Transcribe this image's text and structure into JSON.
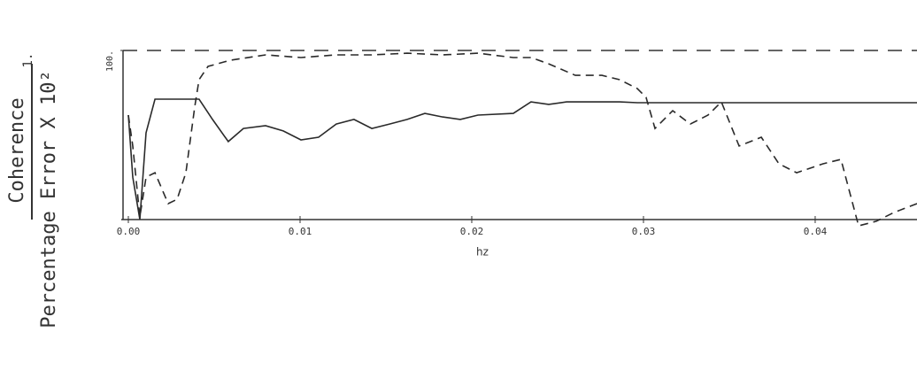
{
  "chart_data": {
    "type": "line",
    "ylabel_top": "Coherence",
    "ylabel_top_value": "1.",
    "ylabel": "Percentage Error X 10²",
    "xlabel": "hz",
    "xlim": [
      0,
      0.04593
    ],
    "ylim": [
      0,
      100
    ],
    "xticks": [
      {
        "value": 0,
        "label": "0.00"
      },
      0.01,
      0.02,
      0.03,
      0.04
    ],
    "yticks": [
      {
        "value": 100,
        "label": "100."
      }
    ],
    "reference_line": 100,
    "series": [
      {
        "color": "#2a2a2a",
        "style": "solid",
        "x": [
          0,
          0.00026,
          0.00067,
          0.00103,
          0.00155,
          0.00412,
          0.0049,
          0.00582,
          0.0067,
          0.00799,
          0.00902,
          0.01005,
          0.01108,
          0.01211,
          0.01314,
          0.01418,
          0.01521,
          0.01624,
          0.01727,
          0.0183,
          0.01933,
          0.02036,
          0.02242,
          0.02345,
          0.02448,
          0.02552,
          0.02861,
          0.02964,
          0.04593
        ],
        "values": [
          61.8,
          25.1,
          0,
          51.3,
          71.2,
          71.2,
          59.2,
          46.1,
          53.9,
          55.5,
          52.4,
          47.1,
          48.7,
          56.5,
          59.2,
          53.9,
          56.5,
          59.2,
          62.8,
          60.7,
          59.2,
          61.8,
          62.8,
          69.6,
          68.1,
          69.6,
          69.6,
          69.1,
          69.1
        ]
      },
      {
        "color": "#2a2a2a",
        "style": "dashed",
        "x": [
          0,
          0.00026,
          0.00067,
          0.00103,
          0.00155,
          0.00232,
          0.00284,
          0.00335,
          0.00387,
          0.00412,
          0.00464,
          0.00593,
          0.00799,
          0.01005,
          0.01211,
          0.01418,
          0.01624,
          0.0183,
          0.02036,
          0.02242,
          0.02345,
          0.02448,
          0.02603,
          0.02758,
          0.02861,
          0.02964,
          0.03015,
          0.03067,
          0.0317,
          0.03273,
          0.03376,
          0.03454,
          0.03557,
          0.03686,
          0.03789,
          0.03892,
          0.04046,
          0.0415,
          0.04253,
          0.04356,
          0.04459,
          0.04593
        ],
        "values": [
          61.8,
          43.5,
          1.6,
          25.1,
          27.7,
          9.4,
          12.0,
          27.7,
          67.0,
          82.7,
          90.6,
          94.2,
          97.4,
          95.8,
          97.4,
          97.4,
          98.4,
          97.4,
          98.4,
          95.8,
          95.8,
          92.1,
          85.3,
          85.3,
          82.7,
          77.5,
          72.3,
          53.9,
          64.4,
          56.5,
          61.8,
          69.6,
          43.5,
          48.7,
          33.0,
          27.7,
          33.0,
          35.6,
          -3.7,
          -1.0,
          4.2,
          9.4
        ]
      }
    ]
  }
}
